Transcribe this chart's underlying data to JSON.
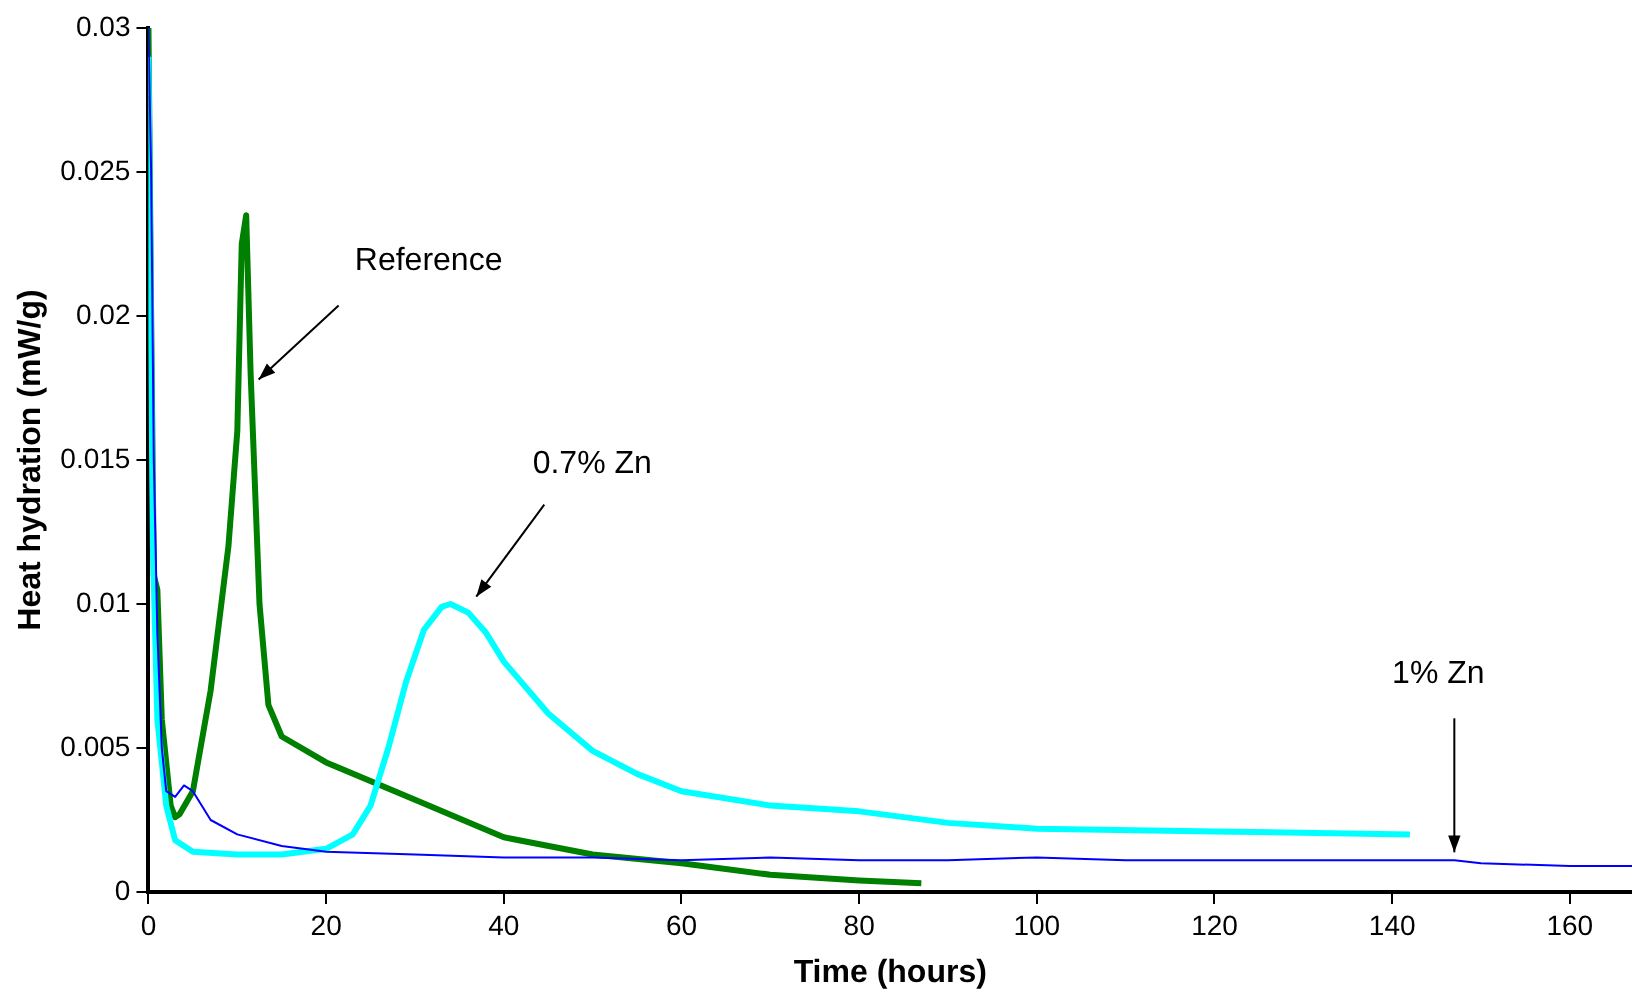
{
  "chart_data": {
    "type": "line",
    "xlabel": "Time (hours)",
    "ylabel": "Heat hydration (mW/g)",
    "xlim": [
      0,
      167
    ],
    "xticks": [
      0,
      20,
      40,
      60,
      80,
      100,
      120,
      140,
      160
    ],
    "ylim": [
      0,
      0.03
    ],
    "yticks": [
      0,
      0.005,
      0.01,
      0.015,
      0.02,
      0.025,
      0.03
    ],
    "grid": false,
    "legend": false,
    "marker": "none",
    "line_style": "solid",
    "annotations": [
      {
        "text": "Reference",
        "x": 11.5,
        "y": 0.018
      },
      {
        "text": "0.7% Zn",
        "x": 36,
        "y": 0.0097
      },
      {
        "text": "1% Zn",
        "x": 147,
        "y": 0.0011
      }
    ],
    "series": [
      {
        "color": "#0000ff",
        "x": [
          0,
          0.3,
          0.6,
          1,
          1.5,
          2,
          3,
          4,
          5,
          7,
          10,
          15,
          20,
          30,
          40,
          50,
          60,
          70,
          80,
          90,
          100,
          110,
          120,
          130,
          140,
          147,
          150,
          160,
          167
        ],
        "values": [
          0.03,
          0.025,
          0.015,
          0.009,
          0.005,
          0.0035,
          0.0033,
          0.0037,
          0.0035,
          0.0025,
          0.002,
          0.0016,
          0.0014,
          0.0013,
          0.0012,
          0.0012,
          0.0011,
          0.0012,
          0.0011,
          0.0011,
          0.0012,
          0.0011,
          0.0011,
          0.0011,
          0.0011,
          0.0011,
          0.001,
          0.0009,
          0.0009
        ]
      },
      {
        "color": "#00ffff",
        "x": [
          0,
          0.5,
          1,
          2,
          3,
          5,
          10,
          15,
          20,
          23,
          25,
          27,
          29,
          31,
          33,
          34,
          36,
          38,
          40,
          45,
          50,
          55,
          60,
          70,
          80,
          90,
          100,
          120,
          142
        ],
        "values": [
          0.029,
          0.012,
          0.006,
          0.003,
          0.0018,
          0.0014,
          0.0013,
          0.0013,
          0.0015,
          0.002,
          0.003,
          0.005,
          0.0073,
          0.0091,
          0.0099,
          0.01,
          0.0097,
          0.009,
          0.008,
          0.0062,
          0.0049,
          0.0041,
          0.0035,
          0.003,
          0.0028,
          0.0024,
          0.0022,
          0.0021,
          0.002
        ]
      },
      {
        "color": "#008000",
        "x": [
          0,
          0.3,
          0.6,
          1,
          1.5,
          2.5,
          3,
          3.5,
          5,
          7,
          9,
          10,
          10.5,
          11,
          11.5,
          12.5,
          13.5,
          15,
          20,
          30,
          40,
          50,
          60,
          70,
          80,
          87
        ],
        "values": [
          0.03,
          0.02,
          0.011,
          0.0105,
          0.006,
          0.003,
          0.0026,
          0.0027,
          0.0035,
          0.007,
          0.012,
          0.016,
          0.0225,
          0.0235,
          0.018,
          0.01,
          0.0065,
          0.0054,
          0.0045,
          0.0032,
          0.0019,
          0.0013,
          0.001,
          0.0006,
          0.0004,
          0.0003
        ]
      }
    ]
  }
}
